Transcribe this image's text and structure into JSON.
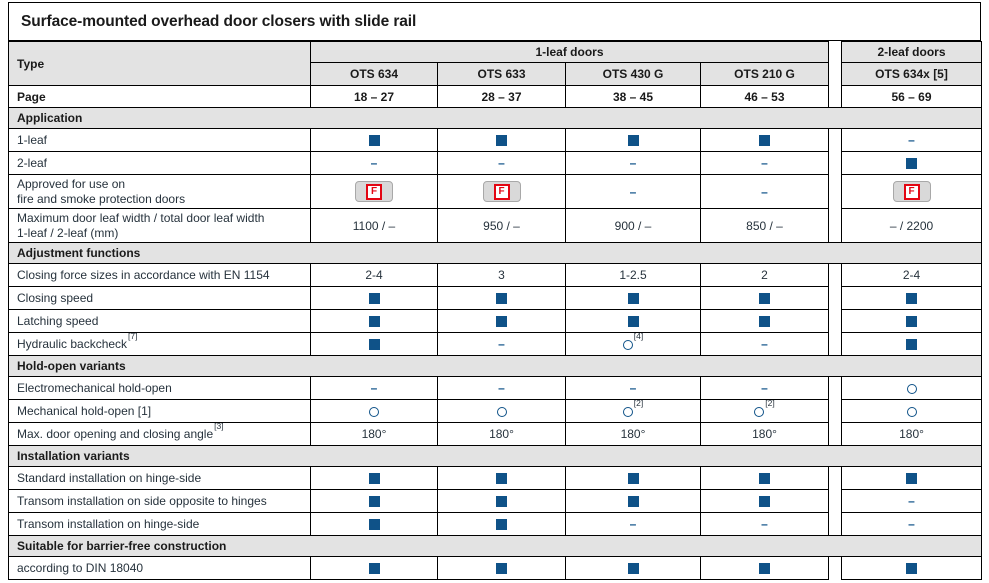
{
  "title": "Surface-mounted overhead door closers with slide rail",
  "colors": {
    "accent_blue": "#0f5288",
    "fire_red": "#e30613",
    "header_gray": "#e3e3e3",
    "heading_text": "#1a1a1a",
    "label_text": "#26323c"
  },
  "glyphs": {
    "dash": "–",
    "fire_letter": "F"
  },
  "header": {
    "type_label": "Type",
    "page_label": "Page",
    "group_1leaf": "1-leaf doors",
    "group_2leaf": "2-leaf doors",
    "models": [
      "OTS 634",
      "OTS 633",
      "OTS 430 G",
      "OTS 210 G",
      "OTS 634x [5]"
    ],
    "pages": [
      "18 – 27",
      "28 – 37",
      "38 – 45",
      "46 – 53",
      "56 – 69"
    ]
  },
  "sections": [
    {
      "heading": "Application",
      "rows": [
        {
          "label": "1-leaf",
          "cells": [
            {
              "symbol": "square"
            },
            {
              "symbol": "square"
            },
            {
              "symbol": "square"
            },
            {
              "symbol": "square"
            },
            {
              "symbol": "dash"
            }
          ]
        },
        {
          "label": "2-leaf",
          "cells": [
            {
              "symbol": "dash"
            },
            {
              "symbol": "dash"
            },
            {
              "symbol": "dash"
            },
            {
              "symbol": "dash"
            },
            {
              "symbol": "square"
            }
          ]
        },
        {
          "label": "Approved for use on\nfire and smoke protection doors",
          "cells": [
            {
              "symbol": "fire"
            },
            {
              "symbol": "fire"
            },
            {
              "symbol": "dash"
            },
            {
              "symbol": "dash"
            },
            {
              "symbol": "fire"
            }
          ]
        },
        {
          "label": "Maximum door leaf width / total door leaf width\n1-leaf / 2-leaf (mm)",
          "cells": [
            {
              "text": "1100 / –"
            },
            {
              "text": "950 / –"
            },
            {
              "text": "900 / –"
            },
            {
              "text": "850 / –"
            },
            {
              "text": "– / 2200"
            }
          ]
        }
      ]
    },
    {
      "heading": "Adjustment functions",
      "rows": [
        {
          "label": "Closing force sizes in accordance with EN 1154",
          "cells": [
            {
              "text": "2-4"
            },
            {
              "text": "3"
            },
            {
              "text": "1-2.5"
            },
            {
              "text": "2"
            },
            {
              "text": "2-4"
            }
          ]
        },
        {
          "label": "Closing speed",
          "cells": [
            {
              "symbol": "square"
            },
            {
              "symbol": "square"
            },
            {
              "symbol": "square"
            },
            {
              "symbol": "square"
            },
            {
              "symbol": "square"
            }
          ]
        },
        {
          "label": "Latching speed",
          "cells": [
            {
              "symbol": "square"
            },
            {
              "symbol": "square"
            },
            {
              "symbol": "square"
            },
            {
              "symbol": "square"
            },
            {
              "symbol": "square"
            }
          ]
        },
        {
          "label": "Hydraulic backcheck",
          "label_sup": "[7]",
          "cells": [
            {
              "symbol": "square"
            },
            {
              "symbol": "dash"
            },
            {
              "symbol": "circle",
              "sup": "[4]"
            },
            {
              "symbol": "dash"
            },
            {
              "symbol": "square"
            }
          ]
        }
      ]
    },
    {
      "heading": "Hold-open variants",
      "rows": [
        {
          "label": "Electromechanical hold-open",
          "cells": [
            {
              "symbol": "dash"
            },
            {
              "symbol": "dash"
            },
            {
              "symbol": "dash"
            },
            {
              "symbol": "dash"
            },
            {
              "symbol": "circle"
            }
          ]
        },
        {
          "label": "Mechanical hold-open [1]",
          "cells": [
            {
              "symbol": "circle"
            },
            {
              "symbol": "circle"
            },
            {
              "symbol": "circle",
              "sup": "[2]"
            },
            {
              "symbol": "circle",
              "sup": "[2]"
            },
            {
              "symbol": "circle"
            }
          ]
        },
        {
          "label": "Max. door opening and closing angle",
          "label_sup": "[3]",
          "cells": [
            {
              "text": "180°"
            },
            {
              "text": "180°"
            },
            {
              "text": "180°"
            },
            {
              "text": "180°"
            },
            {
              "text": "180°"
            }
          ]
        }
      ]
    },
    {
      "heading": "Installation variants",
      "rows": [
        {
          "label": "Standard installation on hinge-side",
          "cells": [
            {
              "symbol": "square"
            },
            {
              "symbol": "square"
            },
            {
              "symbol": "square"
            },
            {
              "symbol": "square"
            },
            {
              "symbol": "square"
            }
          ]
        },
        {
          "label": "Transom installation on side opposite to hinges",
          "cells": [
            {
              "symbol": "square"
            },
            {
              "symbol": "square"
            },
            {
              "symbol": "square"
            },
            {
              "symbol": "square"
            },
            {
              "symbol": "dash"
            }
          ]
        },
        {
          "label": "Transom installation on hinge-side",
          "cells": [
            {
              "symbol": "square"
            },
            {
              "symbol": "square"
            },
            {
              "symbol": "dash"
            },
            {
              "symbol": "dash"
            },
            {
              "symbol": "dash"
            }
          ]
        }
      ]
    },
    {
      "heading": "Suitable for barrier-free construction",
      "rows": [
        {
          "label": "according to DIN 18040",
          "cells": [
            {
              "symbol": "square"
            },
            {
              "symbol": "square"
            },
            {
              "symbol": "square"
            },
            {
              "symbol": "square"
            },
            {
              "symbol": "square"
            }
          ]
        }
      ]
    }
  ]
}
